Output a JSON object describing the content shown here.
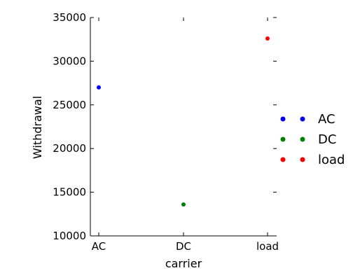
{
  "chart_data": {
    "type": "scatter",
    "title": "",
    "xlabel": "carrier",
    "ylabel": "Withdrawal",
    "categories": [
      "AC",
      "DC",
      "load"
    ],
    "ylim": [
      10000,
      35000
    ],
    "yticks": [
      "10000",
      "15000",
      "20000",
      "25000",
      "30000",
      "35000"
    ],
    "grid": false,
    "legend_position": "right",
    "series": [
      {
        "name": "AC",
        "x": "AC",
        "y": 27000,
        "color": "#0000ff"
      },
      {
        "name": "DC",
        "x": "DC",
        "y": 13600,
        "color": "#008000"
      },
      {
        "name": "load",
        "x": "load",
        "y": 32600,
        "color": "#ff0000"
      }
    ]
  }
}
